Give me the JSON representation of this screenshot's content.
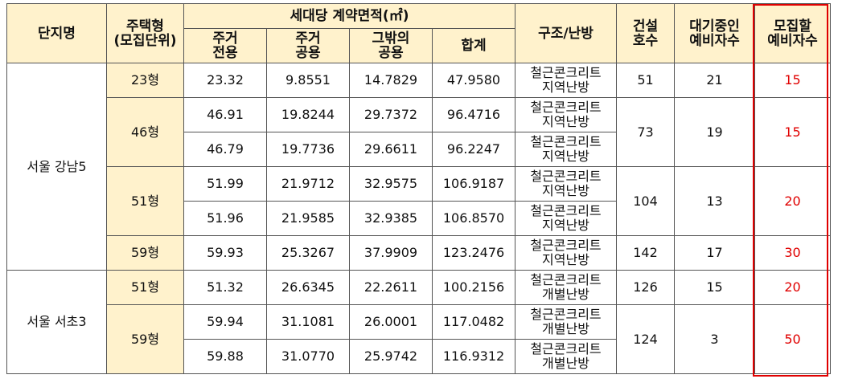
{
  "headers": {
    "complex": "단지명",
    "unit_type_l1": "주택형",
    "unit_type_l2": "(모집단위)",
    "contract_area": "세대당 계약면적(㎡)",
    "exclusive_l1": "주거",
    "exclusive_l2": "전용",
    "common_l1": "주거",
    "common_l2": "공용",
    "other_l1": "그밖의",
    "other_l2": "공용",
    "total": "합계",
    "structure": "구조/난방",
    "units_l1": "건설",
    "units_l2": "호수",
    "waiting_l1": "대기중인",
    "waiting_l2": "예비자수",
    "recruit_l1": "모집할",
    "recruit_l2": "예비자수"
  },
  "complexes": [
    {
      "name": "서울 강남5",
      "groups": [
        {
          "type": "23형",
          "units": "51",
          "waiting": "21",
          "recruit": "15",
          "rows": [
            {
              "exclusive": "23.32",
              "common": "9.8551",
              "other": "14.7829",
              "total": "47.9580",
              "struct_l1": "철근콘크리트",
              "struct_l2": "지역난방"
            }
          ]
        },
        {
          "type": "46형",
          "units": "73",
          "waiting": "19",
          "recruit": "15",
          "rows": [
            {
              "exclusive": "46.91",
              "common": "19.8244",
              "other": "29.7372",
              "total": "96.4716",
              "struct_l1": "철근콘크리트",
              "struct_l2": "지역난방"
            },
            {
              "exclusive": "46.79",
              "common": "19.7736",
              "other": "29.6611",
              "total": "96.2247",
              "struct_l1": "철근콘크리트",
              "struct_l2": "지역난방"
            }
          ]
        },
        {
          "type": "51형",
          "units": "104",
          "waiting": "13",
          "recruit": "20",
          "rows": [
            {
              "exclusive": "51.99",
              "common": "21.9712",
              "other": "32.9575",
              "total": "106.9187",
              "struct_l1": "철근콘크리트",
              "struct_l2": "지역난방"
            },
            {
              "exclusive": "51.96",
              "common": "21.9585",
              "other": "32.9385",
              "total": "106.8570",
              "struct_l1": "철근콘크리트",
              "struct_l2": "지역난방"
            }
          ]
        },
        {
          "type": "59형",
          "units": "142",
          "waiting": "17",
          "recruit": "30",
          "rows": [
            {
              "exclusive": "59.93",
              "common": "25.3267",
              "other": "37.9909",
              "total": "123.2476",
              "struct_l1": "철근콘크리트",
              "struct_l2": "지역난방"
            }
          ]
        }
      ]
    },
    {
      "name": "서울 서초3",
      "groups": [
        {
          "type": "51형",
          "units": "126",
          "waiting": "15",
          "recruit": "20",
          "rows": [
            {
              "exclusive": "51.32",
              "common": "26.6345",
              "other": "22.2611",
              "total": "100.2156",
              "struct_l1": "철근콘크리트",
              "struct_l2": "개별난방"
            }
          ]
        },
        {
          "type": "59형",
          "units": "124",
          "waiting": "3",
          "recruit": "50",
          "rows": [
            {
              "exclusive": "59.94",
              "common": "31.1081",
              "other": "26.0001",
              "total": "117.0482",
              "struct_l1": "철근콘크리트",
              "struct_l2": "개별난방"
            },
            {
              "exclusive": "59.88",
              "common": "31.0770",
              "other": "25.9742",
              "total": "116.9312",
              "struct_l1": "철근콘크리트",
              "struct_l2": "개별난방"
            }
          ]
        }
      ]
    }
  ],
  "colors": {
    "header_bg": "#fff2cc",
    "highlight": "#e00000",
    "border": "#555555"
  }
}
